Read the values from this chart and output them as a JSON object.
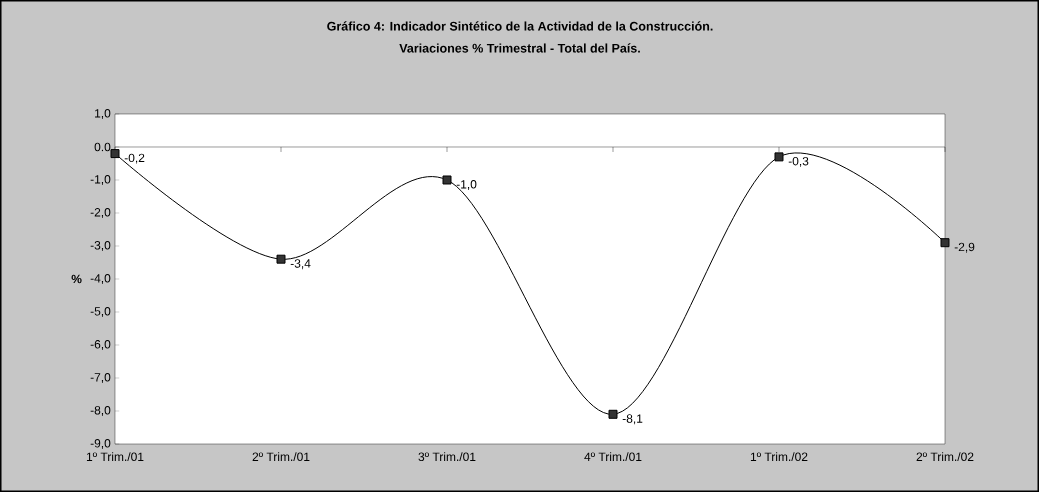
{
  "chart_data": {
    "type": "line",
    "title": "Gráfico 4:  Indicador Sintético de la Actividad de la Construcción.\nVariaciones % Trimestral - Total del País.",
    "ylabel": "%",
    "categories": [
      "1º Trim./01",
      "2º Trim./01",
      "3º Trim./01",
      "4º Trim./01",
      "1º Trim./02",
      "2º Trim./02"
    ],
    "values": [
      -0.2,
      -3.4,
      -1.0,
      -8.1,
      -0.3,
      -2.9
    ],
    "value_labels": [
      "-0,2",
      "-3,4",
      "-1,0",
      "-8,1",
      "-0,3",
      "-2,9"
    ],
    "color": "#000000",
    "marker": "square",
    "line_style": "solid",
    "ylim": [
      -9,
      1
    ],
    "yticks": [
      {
        "value": -9,
        "label": "-9,0"
      },
      {
        "value": -8,
        "label": "-8,0"
      },
      {
        "value": -7,
        "label": "-7,0"
      },
      {
        "value": -6,
        "label": "-6,0"
      },
      {
        "value": -5,
        "label": "-5,0"
      },
      {
        "value": -4,
        "label": "-4,0"
      },
      {
        "value": -3,
        "label": "-3,0"
      },
      {
        "value": -2,
        "label": "-2,0"
      },
      {
        "value": -1,
        "label": "-1,0"
      },
      {
        "value": 0,
        "label": "0.0"
      },
      {
        "value": 1,
        "label": "1,0"
      }
    ]
  }
}
